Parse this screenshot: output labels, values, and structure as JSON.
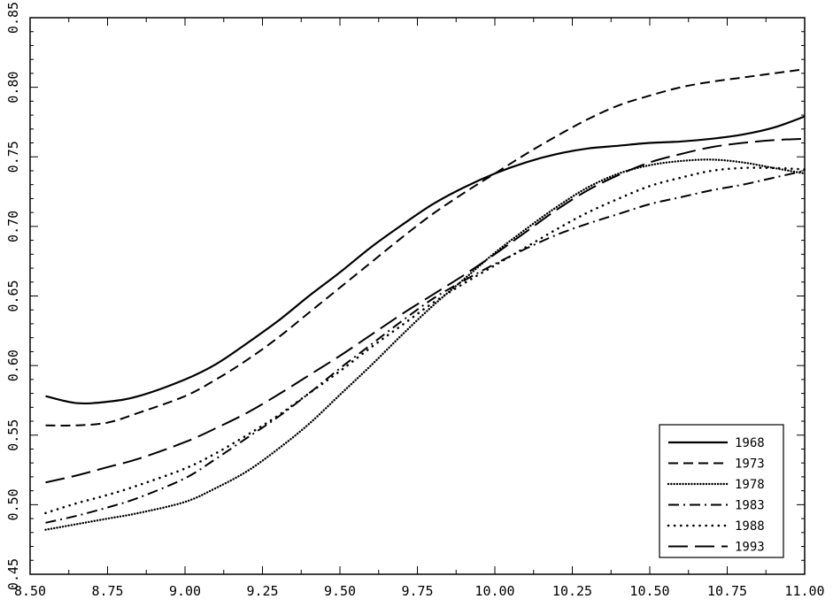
{
  "chart_data": {
    "type": "line",
    "title": "",
    "xlabel": "",
    "ylabel": "",
    "xlim": [
      8.5,
      11.0
    ],
    "ylim": [
      0.45,
      0.85
    ],
    "xticks": [
      "8.50",
      "8.75",
      "9.00",
      "9.25",
      "9.50",
      "9.75",
      "10.00",
      "10.25",
      "10.50",
      "10.75",
      "11.00"
    ],
    "yticks": [
      "0.45",
      "0.50",
      "0.55",
      "0.60",
      "0.65",
      "0.70",
      "0.75",
      "0.80",
      "0.85"
    ],
    "grid": false,
    "legend_position": "bottom-right",
    "line_color": "#000000",
    "series": [
      {
        "name": "1968",
        "dash": "solid",
        "x": [
          8.55,
          8.65,
          8.75,
          8.85,
          9.0,
          9.1,
          9.2,
          9.3,
          9.4,
          9.5,
          9.6,
          9.7,
          9.8,
          9.9,
          10.0,
          10.1,
          10.2,
          10.3,
          10.4,
          10.5,
          10.6,
          10.7,
          10.8,
          10.9,
          11.0
        ],
        "y": [
          0.578,
          0.573,
          0.574,
          0.578,
          0.59,
          0.601,
          0.616,
          0.632,
          0.65,
          0.667,
          0.685,
          0.701,
          0.716,
          0.728,
          0.738,
          0.746,
          0.752,
          0.756,
          0.758,
          0.76,
          0.761,
          0.763,
          0.766,
          0.771,
          0.779
        ]
      },
      {
        "name": "1973",
        "dash": "short-dash",
        "x": [
          8.55,
          8.65,
          8.75,
          8.85,
          9.0,
          9.1,
          9.2,
          9.3,
          9.4,
          9.5,
          9.6,
          9.7,
          9.8,
          9.9,
          10.0,
          10.1,
          10.2,
          10.3,
          10.4,
          10.5,
          10.6,
          10.7,
          10.8,
          10.9,
          11.0
        ],
        "y": [
          0.557,
          0.557,
          0.559,
          0.566,
          0.578,
          0.59,
          0.604,
          0.62,
          0.638,
          0.656,
          0.674,
          0.692,
          0.709,
          0.724,
          0.738,
          0.752,
          0.765,
          0.777,
          0.787,
          0.794,
          0.8,
          0.804,
          0.807,
          0.81,
          0.813
        ]
      },
      {
        "name": "1978",
        "dash": "dense-dot",
        "x": [
          8.55,
          8.65,
          8.75,
          8.85,
          9.0,
          9.1,
          9.2,
          9.3,
          9.4,
          9.5,
          9.6,
          9.7,
          9.8,
          9.9,
          10.0,
          10.1,
          10.2,
          10.3,
          10.4,
          10.5,
          10.6,
          10.7,
          10.8,
          10.9,
          11.0
        ],
        "y": [
          0.482,
          0.486,
          0.49,
          0.494,
          0.502,
          0.512,
          0.524,
          0.54,
          0.558,
          0.579,
          0.6,
          0.622,
          0.643,
          0.662,
          0.681,
          0.698,
          0.714,
          0.728,
          0.738,
          0.744,
          0.747,
          0.748,
          0.746,
          0.742,
          0.738
        ]
      },
      {
        "name": "1983",
        "dash": "dash-dot",
        "x": [
          8.55,
          8.65,
          8.75,
          8.85,
          9.0,
          9.1,
          9.2,
          9.3,
          9.4,
          9.5,
          9.6,
          9.7,
          9.8,
          9.9,
          10.0,
          10.1,
          10.2,
          10.3,
          10.4,
          10.5,
          10.6,
          10.7,
          10.8,
          10.9,
          11.0
        ],
        "y": [
          0.487,
          0.492,
          0.498,
          0.505,
          0.519,
          0.533,
          0.548,
          0.563,
          0.58,
          0.598,
          0.615,
          0.632,
          0.648,
          0.661,
          0.673,
          0.684,
          0.694,
          0.702,
          0.709,
          0.716,
          0.721,
          0.726,
          0.73,
          0.735,
          0.74
        ]
      },
      {
        "name": "1988",
        "dash": "sparse-dot",
        "x": [
          8.55,
          8.65,
          8.75,
          8.85,
          9.0,
          9.1,
          9.2,
          9.3,
          9.4,
          9.5,
          9.6,
          9.7,
          9.8,
          9.9,
          10.0,
          10.1,
          10.2,
          10.3,
          10.4,
          10.5,
          10.6,
          10.7,
          10.8,
          10.9,
          11.0
        ],
        "y": [
          0.494,
          0.501,
          0.507,
          0.514,
          0.526,
          0.537,
          0.55,
          0.564,
          0.58,
          0.596,
          0.613,
          0.629,
          0.645,
          0.659,
          0.672,
          0.685,
          0.698,
          0.71,
          0.72,
          0.729,
          0.735,
          0.74,
          0.742,
          0.742,
          0.741
        ]
      },
      {
        "name": "1993",
        "dash": "long-dash",
        "x": [
          8.55,
          8.65,
          8.75,
          8.85,
          9.0,
          9.1,
          9.2,
          9.3,
          9.4,
          9.5,
          9.6,
          9.7,
          9.8,
          9.9,
          10.0,
          10.1,
          10.2,
          10.3,
          10.4,
          10.5,
          10.6,
          10.7,
          10.8,
          10.9,
          11.0
        ],
        "y": [
          0.516,
          0.521,
          0.527,
          0.533,
          0.545,
          0.555,
          0.566,
          0.579,
          0.593,
          0.607,
          0.622,
          0.637,
          0.651,
          0.665,
          0.68,
          0.696,
          0.712,
          0.726,
          0.737,
          0.746,
          0.752,
          0.757,
          0.76,
          0.762,
          0.763
        ]
      }
    ]
  }
}
